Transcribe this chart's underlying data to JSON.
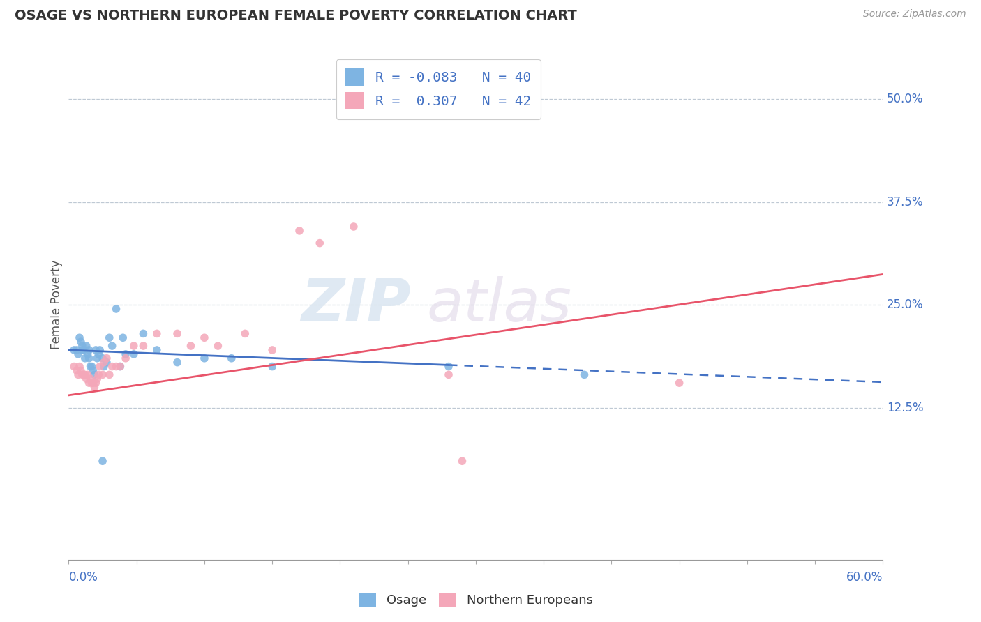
{
  "title": "OSAGE VS NORTHERN EUROPEAN FEMALE POVERTY CORRELATION CHART",
  "source": "Source: ZipAtlas.com",
  "ylabel": "Female Poverty",
  "xmin": 0.0,
  "xmax": 0.6,
  "ymin": -0.06,
  "ymax": 0.56,
  "yticks": [
    0.125,
    0.25,
    0.375,
    0.5
  ],
  "ytick_labels": [
    "12.5%",
    "25.0%",
    "37.5%",
    "50.0%"
  ],
  "osage_color": "#7eb4e2",
  "northern_color": "#f4a7b9",
  "osage_line_color": "#4472c4",
  "northern_line_color": "#e8546a",
  "background_color": "#ffffff",
  "grid_color": "#b8c4d0",
  "osage_points": [
    [
      0.004,
      0.195
    ],
    [
      0.006,
      0.195
    ],
    [
      0.007,
      0.19
    ],
    [
      0.008,
      0.21
    ],
    [
      0.009,
      0.205
    ],
    [
      0.01,
      0.2
    ],
    [
      0.01,
      0.195
    ],
    [
      0.011,
      0.195
    ],
    [
      0.012,
      0.185
    ],
    [
      0.013,
      0.2
    ],
    [
      0.014,
      0.19
    ],
    [
      0.015,
      0.195
    ],
    [
      0.015,
      0.185
    ],
    [
      0.016,
      0.175
    ],
    [
      0.017,
      0.175
    ],
    [
      0.018,
      0.17
    ],
    [
      0.019,
      0.165
    ],
    [
      0.02,
      0.195
    ],
    [
      0.021,
      0.185
    ],
    [
      0.022,
      0.19
    ],
    [
      0.023,
      0.195
    ],
    [
      0.025,
      0.185
    ],
    [
      0.026,
      0.175
    ],
    [
      0.028,
      0.18
    ],
    [
      0.03,
      0.21
    ],
    [
      0.032,
      0.2
    ],
    [
      0.035,
      0.245
    ],
    [
      0.038,
      0.175
    ],
    [
      0.04,
      0.21
    ],
    [
      0.042,
      0.19
    ],
    [
      0.048,
      0.19
    ],
    [
      0.055,
      0.215
    ],
    [
      0.065,
      0.195
    ],
    [
      0.08,
      0.18
    ],
    [
      0.1,
      0.185
    ],
    [
      0.12,
      0.185
    ],
    [
      0.15,
      0.175
    ],
    [
      0.28,
      0.175
    ],
    [
      0.38,
      0.165
    ],
    [
      0.025,
      0.06
    ]
  ],
  "northern_points": [
    [
      0.004,
      0.175
    ],
    [
      0.006,
      0.17
    ],
    [
      0.007,
      0.165
    ],
    [
      0.008,
      0.175
    ],
    [
      0.009,
      0.17
    ],
    [
      0.01,
      0.165
    ],
    [
      0.011,
      0.165
    ],
    [
      0.012,
      0.165
    ],
    [
      0.013,
      0.16
    ],
    [
      0.014,
      0.165
    ],
    [
      0.015,
      0.155
    ],
    [
      0.016,
      0.16
    ],
    [
      0.017,
      0.155
    ],
    [
      0.018,
      0.155
    ],
    [
      0.019,
      0.15
    ],
    [
      0.02,
      0.155
    ],
    [
      0.021,
      0.16
    ],
    [
      0.022,
      0.165
    ],
    [
      0.023,
      0.175
    ],
    [
      0.025,
      0.165
    ],
    [
      0.026,
      0.18
    ],
    [
      0.028,
      0.185
    ],
    [
      0.03,
      0.165
    ],
    [
      0.032,
      0.175
    ],
    [
      0.035,
      0.175
    ],
    [
      0.038,
      0.175
    ],
    [
      0.042,
      0.185
    ],
    [
      0.048,
      0.2
    ],
    [
      0.055,
      0.2
    ],
    [
      0.065,
      0.215
    ],
    [
      0.08,
      0.215
    ],
    [
      0.09,
      0.2
    ],
    [
      0.1,
      0.21
    ],
    [
      0.11,
      0.2
    ],
    [
      0.13,
      0.215
    ],
    [
      0.15,
      0.195
    ],
    [
      0.17,
      0.34
    ],
    [
      0.185,
      0.325
    ],
    [
      0.21,
      0.345
    ],
    [
      0.28,
      0.165
    ],
    [
      0.45,
      0.155
    ],
    [
      0.29,
      0.06
    ]
  ]
}
